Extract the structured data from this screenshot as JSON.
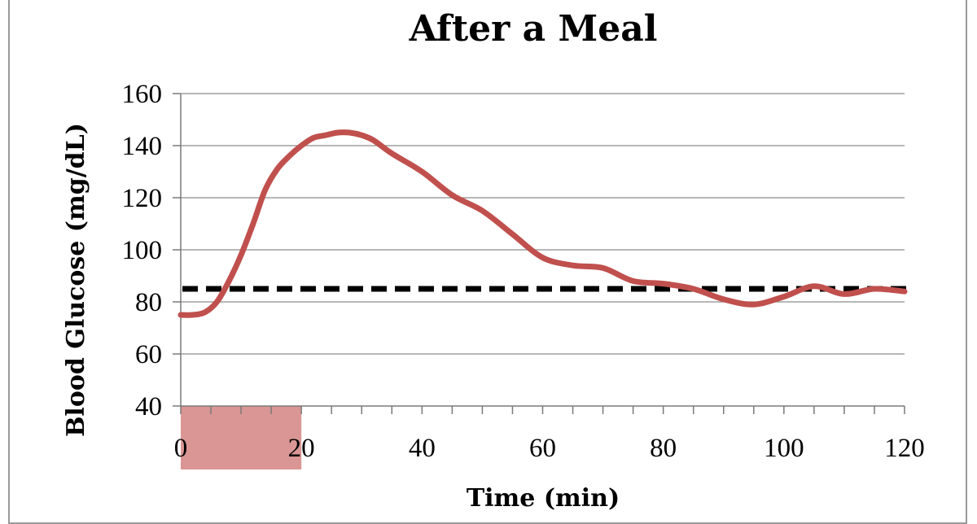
{
  "chart_data": {
    "type": "line",
    "title": "After a Meal",
    "xlabel": "Time (min)",
    "ylabel": "Blood Glucose (mg/dL)",
    "xlim": [
      0,
      120
    ],
    "ylim": [
      40,
      160
    ],
    "x_ticks": [
      0,
      20,
      40,
      60,
      80,
      100,
      120
    ],
    "y_ticks": [
      40,
      60,
      80,
      100,
      120,
      140,
      160
    ],
    "grid": true,
    "colors": {
      "series": "#c0504d",
      "reference": "#000000",
      "highlight": "#d99694"
    },
    "series": [
      {
        "x": [
          0,
          2,
          4,
          6,
          8,
          10,
          12,
          14,
          16,
          18,
          20,
          22,
          24,
          26,
          28,
          30,
          32,
          35,
          40,
          45,
          50,
          55,
          60,
          65,
          70,
          75,
          80,
          85,
          90,
          95,
          100,
          105,
          110,
          115,
          120
        ],
        "values": [
          75,
          75,
          76,
          80,
          88,
          98,
          110,
          123,
          131,
          136,
          140,
          143,
          144,
          145,
          145,
          144,
          142,
          137,
          130,
          121,
          115,
          106,
          97,
          94,
          93,
          88,
          87,
          85,
          81,
          79,
          82,
          86,
          83,
          85,
          84
        ]
      }
    ],
    "reference_line": {
      "y": 85,
      "style": "dashed"
    },
    "highlight_range": {
      "x": [
        0,
        20
      ]
    }
  }
}
